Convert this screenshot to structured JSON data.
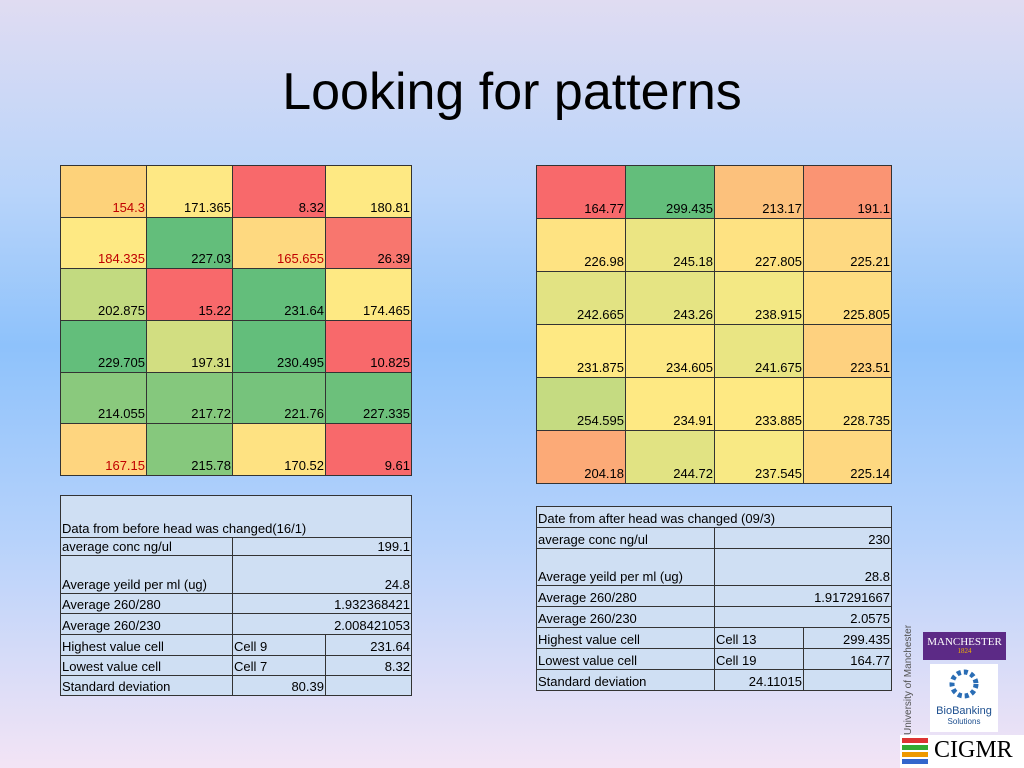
{
  "title": "Looking for patterns",
  "grids": [
    {
      "rows": [
        [
          {
            "text": "154.3",
            "fill": "#fdd27a",
            "text_color": "#c00000"
          },
          {
            "text": "171.365",
            "fill": "#fee884"
          },
          {
            "text": "8.32",
            "fill": "#f8696b"
          },
          {
            "text": "180.81",
            "fill": "#fee983"
          }
        ],
        [
          {
            "text": "184.335",
            "fill": "#fee983",
            "text_color": "#c00000"
          },
          {
            "text": "227.03",
            "fill": "#63be7b"
          },
          {
            "text": "165.655",
            "fill": "#fed980",
            "text_color": "#c00000"
          },
          {
            "text": "26.39",
            "fill": "#f8766e"
          }
        ],
        [
          {
            "text": "202.875",
            "fill": "#c2da80"
          },
          {
            "text": "15.22",
            "fill": "#f8696b"
          },
          {
            "text": "231.64",
            "fill": "#63be7b"
          },
          {
            "text": "174.465",
            "fill": "#fee983"
          }
        ],
        [
          {
            "text": "229.705",
            "fill": "#63be7b"
          },
          {
            "text": "197.31",
            "fill": "#d2de81"
          },
          {
            "text": "230.495",
            "fill": "#63be7b"
          },
          {
            "text": "10.825",
            "fill": "#f8696b"
          }
        ],
        [
          {
            "text": "214.055",
            "fill": "#8ac97d"
          },
          {
            "text": "217.72",
            "fill": "#85c87d"
          },
          {
            "text": "221.76",
            "fill": "#76c37c"
          },
          {
            "text": "227.335",
            "fill": "#6cc07b"
          }
        ],
        [
          {
            "text": "167.15",
            "fill": "#fed57f",
            "text_color": "#c00000"
          },
          {
            "text": "215.78",
            "fill": "#86c87d"
          },
          {
            "text": "170.52",
            "fill": "#fee282"
          },
          {
            "text": "9.61",
            "fill": "#f8696b"
          }
        ]
      ]
    },
    {
      "rows": [
        [
          {
            "text": "164.77",
            "fill": "#f8696b"
          },
          {
            "text": "299.435",
            "fill": "#63be7b"
          },
          {
            "text": "213.17",
            "fill": "#fcc17c"
          },
          {
            "text": "191.1",
            "fill": "#fa9473"
          }
        ],
        [
          {
            "text": "226.98",
            "fill": "#fee382"
          },
          {
            "text": "245.18",
            "fill": "#ebe583"
          },
          {
            "text": "227.805",
            "fill": "#fee282"
          },
          {
            "text": "225.21",
            "fill": "#fed981"
          }
        ],
        [
          {
            "text": "242.665",
            "fill": "#e2e383"
          },
          {
            "text": "243.26",
            "fill": "#e5e483"
          },
          {
            "text": "238.915",
            "fill": "#f3e884"
          },
          {
            "text": "225.805",
            "fill": "#fedd81"
          }
        ],
        [
          {
            "text": "231.875",
            "fill": "#fee983"
          },
          {
            "text": "234.605",
            "fill": "#fde884"
          },
          {
            "text": "241.675",
            "fill": "#e9e583"
          },
          {
            "text": "223.51",
            "fill": "#fed17f"
          }
        ],
        [
          {
            "text": "254.595",
            "fill": "#c5db81"
          },
          {
            "text": "234.91",
            "fill": "#fee983"
          },
          {
            "text": "233.885",
            "fill": "#fee983"
          },
          {
            "text": "228.735",
            "fill": "#fee382"
          }
        ],
        [
          {
            "text": "204.18",
            "fill": "#fcaa77"
          },
          {
            "text": "244.72",
            "fill": "#e1e383"
          },
          {
            "text": "237.545",
            "fill": "#f8e984"
          },
          {
            "text": "225.14",
            "fill": "#fed880"
          }
        ]
      ]
    }
  ],
  "stats": [
    {
      "caption": "Data from before head was changed(16/1)",
      "rows": [
        {
          "label": "average conc ng/ul",
          "value": "199.1"
        },
        {
          "label": "Average yeild per ml (ug)",
          "value": "24.8"
        },
        {
          "label": "Average 260/280",
          "value": "1.932368421"
        },
        {
          "label": "Average 260/230",
          "value": "2.008421053"
        },
        {
          "label": "Highest value cell",
          "cell": "Cell 9",
          "value": "231.64"
        },
        {
          "label": "Lowest value cell",
          "cell": "Cell 7",
          "value": "8.32"
        },
        {
          "label": "Standard deviation",
          "cell": "80.39"
        }
      ]
    },
    {
      "caption": "Date from after head was changed (09/3)",
      "rows": [
        {
          "label": "average conc ng/ul",
          "value": "230"
        },
        {
          "label": "Average yeild per ml (ug)",
          "value": "28.8"
        },
        {
          "label": "Average 260/280",
          "value": "1.917291667"
        },
        {
          "label": "Average 260/230",
          "value": "2.0575"
        },
        {
          "label": "Highest value cell",
          "cell": "Cell 13",
          "value": "299.435"
        },
        {
          "label": "Lowest value cell",
          "cell": "Cell 19",
          "value": "164.77"
        },
        {
          "label": "Standard deviation",
          "cell": "24.11015"
        }
      ]
    }
  ],
  "logos": {
    "manchester": "MANCHESTER",
    "manchester_year": "1824",
    "university": "The University of Manchester",
    "biobanking": "BioBanking",
    "biobanking_sub": "Solutions",
    "cigmr": "CIGMR"
  }
}
